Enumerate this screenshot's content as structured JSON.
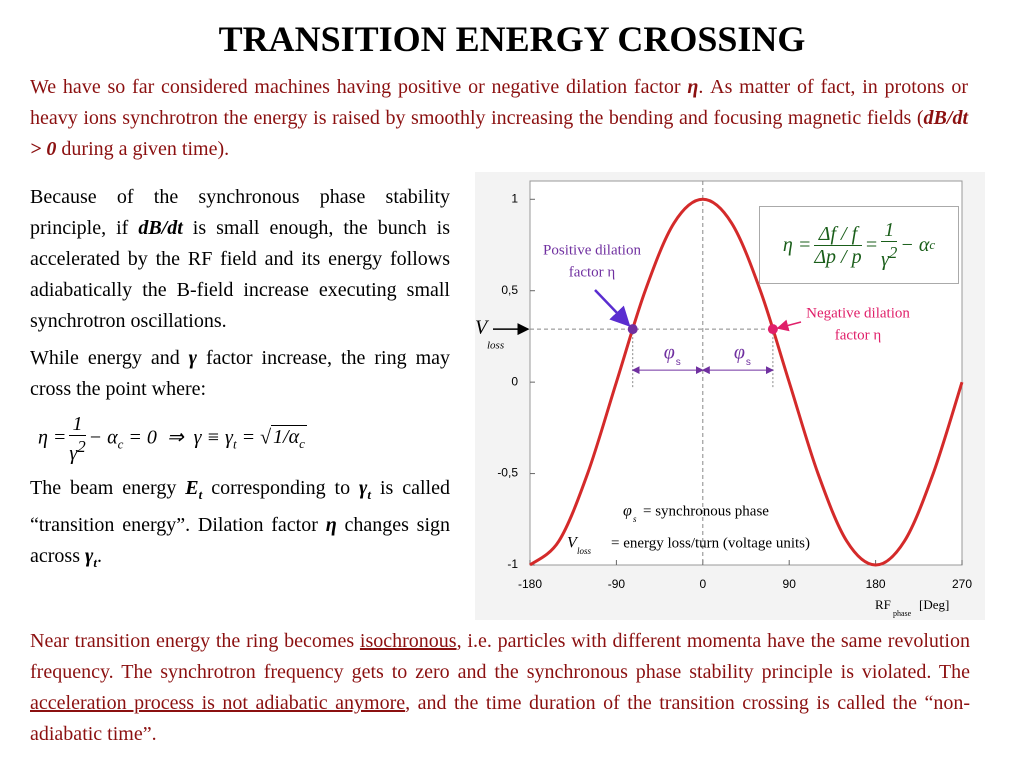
{
  "title": "TRANSITION ENERGY CROSSING",
  "intro": [
    "We have so far considered machines having positive or negative dilation factor ",
    "η",
    ". As matter of fact, in protons or heavy ions synchrotron the energy is raised by smoothly increasing the bending and focusing magnetic fields (",
    "dB/dt > 0",
    " during a given time)."
  ],
  "left": {
    "p1": [
      "Because of the synchronous phase stability principle, if ",
      "dB/dt",
      " is small enough, the bunch is accelerated by the RF field and its energy follows adiabatically the B-field increase executing small synchrotron oscillations."
    ],
    "p2": [
      "While energy and ",
      "γ",
      " factor increase, the ring may cross the point where:"
    ],
    "eq": {
      "lhs": "η =",
      "num": "1",
      "den": "γ",
      "den_sup": "2",
      "minus": "− α",
      "sub1": "c",
      "mid": "= 0  ⇒  γ ≡ γ",
      "sub2": "t",
      "eq": "=",
      "root": "1/α",
      "sub3": "c"
    },
    "p3": [
      "The beam energy ",
      "E",
      "t",
      " corresponding to ",
      "γ",
      "t",
      " is called “transition energy”. Dilation factor ",
      "η",
      " changes sign across ",
      "γ",
      "t",
      "."
    ]
  },
  "bottom": [
    "Near transition energy the ring becomes ",
    "isochronous",
    ", i.e. particles with different momenta have the same revolution frequency. The synchrotron frequency gets to zero and the synchronous phase stability principle is violated. The ",
    "acceleration process is not adiabatic anymore",
    ", and the time duration of the transition crossing is called the “non-adiabatic time”."
  ],
  "chart_data": {
    "type": "line",
    "x": [
      -180,
      -150,
      -120,
      -90,
      -60,
      -30,
      0,
      30,
      60,
      90,
      120,
      150,
      180,
      210,
      240,
      270
    ],
    "values": [
      -1,
      -0.87,
      -0.5,
      0,
      0.5,
      0.87,
      1,
      0.87,
      0.5,
      0,
      -0.5,
      -0.87,
      -1,
      -0.87,
      -0.5,
      0
    ],
    "color": "#d42a2a",
    "xlim": [
      -180,
      270
    ],
    "ylim": [
      -1,
      1.1
    ],
    "xticks": [
      -180,
      -90,
      0,
      90,
      180,
      270
    ],
    "yticks": [
      -1,
      {
        "value": -0.5,
        "label": "-0,5"
      },
      0,
      {
        "value": 0.5,
        "label": "0,5"
      },
      1
    ],
    "vloss": 0.29,
    "markers": [
      {
        "x": -73,
        "y": 0.29,
        "color": "#7030a0"
      },
      {
        "x": 73,
        "y": 0.29,
        "color": "#e0206a"
      }
    ],
    "xlabel": {
      "main": "RF",
      "sub": "phase",
      "unit": "[Deg]"
    },
    "pos_label": [
      "Positive dilation",
      "factor η"
    ],
    "neg_label": [
      "Negative dilation",
      "factor η"
    ],
    "vloss_label": {
      "main": "V",
      "sub": "loss"
    },
    "phi_label": {
      "main": "φ",
      "sub": "s"
    },
    "legend": [
      {
        "sym": "φ",
        "sub": "s",
        "text": "= synchronous phase"
      },
      {
        "sym": "V",
        "sub": "loss",
        "text": "= energy loss/turn (voltage units)"
      }
    ],
    "formula": {
      "lhs": "η =",
      "num": "Δf / f",
      "den": "Δp / p",
      "eq": "=",
      "num2": "1",
      "den2": "γ",
      "sup": "2",
      "minus": "− α",
      "sub": "c"
    }
  }
}
